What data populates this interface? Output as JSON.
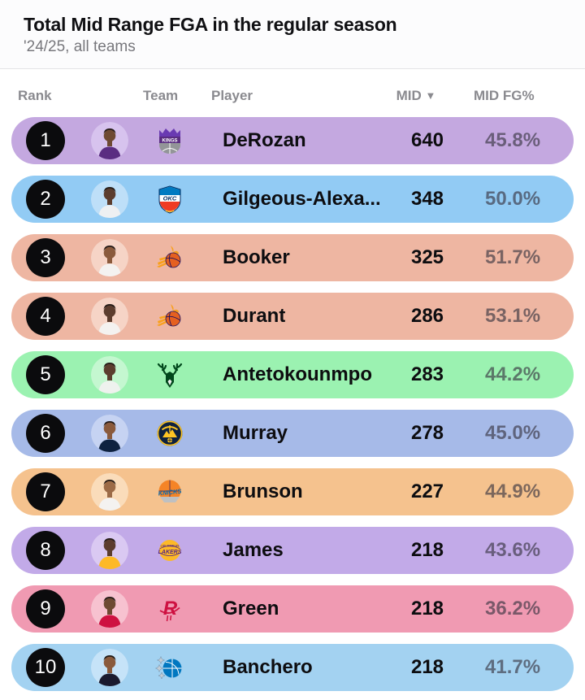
{
  "header": {
    "title": "Total Mid Range FGA in the regular season",
    "subtitle": "'24/25, all teams"
  },
  "table": {
    "columns": {
      "rank": "Rank",
      "team": "Team",
      "player": "Player",
      "mid": "MID",
      "fg": "MID FG%"
    },
    "sort_indicator": "▼",
    "rows": [
      {
        "rank": "1",
        "team": "kings",
        "player": "DeRozan",
        "mid": "640",
        "fg": "45.8%",
        "row_color": "#c4a8e0",
        "avatar_bg": "#d7c3ee",
        "jersey": "#5a2d81",
        "skin": "#6e4a33"
      },
      {
        "rank": "2",
        "team": "thunder",
        "player": "Gilgeous-Alexa...",
        "mid": "348",
        "fg": "50.0%",
        "row_color": "#92cbf4",
        "avatar_bg": "#bedff8",
        "jersey": "#eef0f2",
        "skin": "#5c3d2e"
      },
      {
        "rank": "3",
        "team": "suns",
        "player": "Booker",
        "mid": "325",
        "fg": "51.7%",
        "row_color": "#eeb6a2",
        "avatar_bg": "#f6d4c6",
        "jersey": "#f4f2f0",
        "skin": "#8a5a3c"
      },
      {
        "rank": "4",
        "team": "suns",
        "player": "Durant",
        "mid": "286",
        "fg": "53.1%",
        "row_color": "#eeb6a2",
        "avatar_bg": "#f6d4c6",
        "jersey": "#f4f2f0",
        "skin": "#5c3d2e"
      },
      {
        "rank": "5",
        "team": "bucks",
        "player": "Antetokounmpo",
        "mid": "283",
        "fg": "44.2%",
        "row_color": "#9bf2b1",
        "avatar_bg": "#c4f7d0",
        "jersey": "#eef2ee",
        "skin": "#5c3d2e"
      },
      {
        "rank": "6",
        "team": "nuggets",
        "player": "Murray",
        "mid": "278",
        "fg": "45.0%",
        "row_color": "#a6bae8",
        "avatar_bg": "#c6d3f2",
        "jersey": "#0e2240",
        "skin": "#8a5a3c"
      },
      {
        "rank": "7",
        "team": "knicks",
        "player": "Brunson",
        "mid": "227",
        "fg": "44.9%",
        "row_color": "#f5c28e",
        "avatar_bg": "#fadcba",
        "jersey": "#f4f2f0",
        "skin": "#9c6b47"
      },
      {
        "rank": "8",
        "team": "lakers",
        "player": "James",
        "mid": "218",
        "fg": "43.6%",
        "row_color": "#c2aae8",
        "avatar_bg": "#dac9f2",
        "jersey": "#fdb927",
        "skin": "#5c3d2e"
      },
      {
        "rank": "9",
        "team": "rockets",
        "player": "Green",
        "mid": "218",
        "fg": "36.2%",
        "row_color": "#f09ab2",
        "avatar_bg": "#f7c2d0",
        "jersey": "#ce1141",
        "skin": "#6e4a33"
      },
      {
        "rank": "10",
        "team": "magic",
        "player": "Banchero",
        "mid": "218",
        "fg": "41.7%",
        "row_color": "#a3d2f1",
        "avatar_bg": "#c6e3f8",
        "jersey": "#1a1a2e",
        "skin": "#8a5a3c"
      }
    ]
  }
}
